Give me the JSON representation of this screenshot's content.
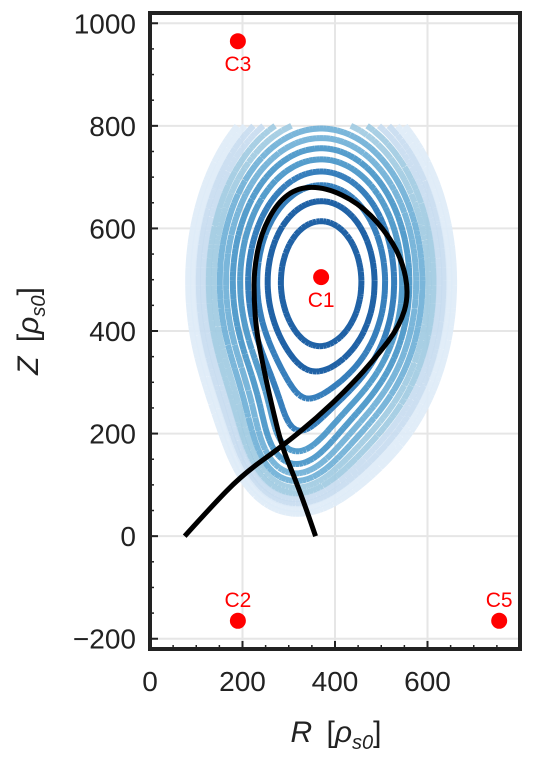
{
  "chart_data": {
    "type": "contour",
    "x_axis": {
      "label_symbol": "R",
      "unit_symbol": "ρ",
      "unit_subscript": "s0",
      "range": [
        0,
        800
      ],
      "ticks": [
        0,
        200,
        400,
        600
      ]
    },
    "y_axis": {
      "label_symbol": "Z",
      "unit_symbol": "ρ",
      "unit_subscript": "s0",
      "range": [
        -220,
        1020
      ],
      "ticks": [
        -200,
        0,
        200,
        400,
        600,
        800,
        1000
      ]
    },
    "grid": true,
    "contour_domain": {
      "r": [
        0,
        660
      ],
      "z": [
        0,
        800
      ]
    },
    "flux_center": [
      370,
      495
    ],
    "contour_style": "dashed",
    "contour_colormap": [
      "#08519c",
      "#2171b5",
      "#4292c6",
      "#6baed6",
      "#9ecae1",
      "#c6dbef",
      "#deebf7"
    ],
    "separatrix": {
      "color": "#000000",
      "x_point": [
        285,
        175
      ],
      "points": [
        [
          75,
          0
        ],
        [
          130,
          55
        ],
        [
          200,
          120
        ],
        [
          285,
          175
        ],
        [
          360,
          230
        ],
        [
          430,
          290
        ],
        [
          490,
          350
        ],
        [
          540,
          410
        ],
        [
          560,
          470
        ],
        [
          545,
          540
        ],
        [
          505,
          600
        ],
        [
          450,
          650
        ],
        [
          380,
          680
        ],
        [
          320,
          680
        ],
        [
          275,
          650
        ],
        [
          240,
          590
        ],
        [
          225,
          520
        ],
        [
          225,
          460
        ],
        [
          230,
          400
        ],
        [
          245,
          330
        ],
        [
          262,
          260
        ],
        [
          285,
          175
        ],
        [
          310,
          120
        ],
        [
          335,
          60
        ],
        [
          358,
          0
        ]
      ]
    },
    "coils": {
      "color": "#ff0000",
      "points": [
        {
          "name": "C1",
          "r": 370,
          "z": 505,
          "label_pos": "below"
        },
        {
          "name": "C2",
          "r": 190,
          "z": -165,
          "label_pos": "above"
        },
        {
          "name": "C3",
          "r": 190,
          "z": 965,
          "label_pos": "below"
        },
        {
          "name": "C5",
          "r": 755,
          "z": -165,
          "label_pos": "above"
        }
      ]
    }
  }
}
